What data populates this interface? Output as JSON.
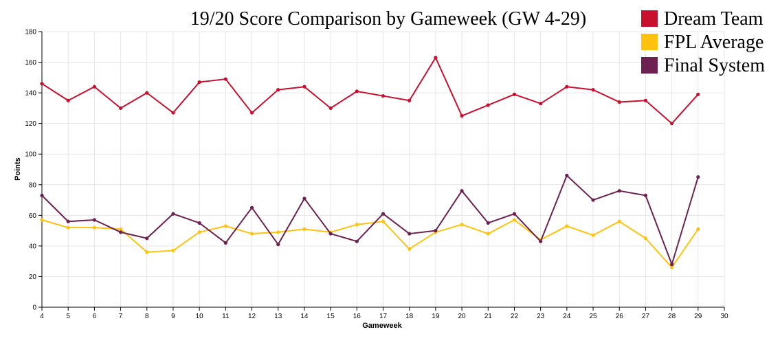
{
  "chart_data": {
    "type": "line",
    "title": "19/20 Score Comparison by Gameweek (GW 4-29)",
    "xlabel": "Gameweek",
    "ylabel": "Points",
    "xlim": [
      4,
      30
    ],
    "ylim": [
      0,
      180
    ],
    "x_ticks": [
      4,
      5,
      6,
      7,
      8,
      9,
      10,
      11,
      12,
      13,
      14,
      15,
      16,
      17,
      18,
      19,
      20,
      21,
      22,
      23,
      24,
      25,
      26,
      27,
      28,
      29,
      30
    ],
    "y_ticks": [
      0,
      20,
      40,
      60,
      80,
      100,
      120,
      140,
      160,
      180
    ],
    "grid": true,
    "legend_position": "top-right",
    "x": [
      4,
      5,
      6,
      7,
      8,
      9,
      10,
      11,
      12,
      13,
      14,
      15,
      16,
      17,
      18,
      19,
      20,
      21,
      22,
      23,
      24,
      25,
      26,
      27,
      28,
      29
    ],
    "series": [
      {
        "name": "Dream Team",
        "color": "#c8102e",
        "values": [
          146,
          135,
          144,
          130,
          140,
          127,
          147,
          149,
          127,
          142,
          144,
          130,
          141,
          138,
          135,
          163,
          125,
          132,
          139,
          133,
          144,
          142,
          134,
          135,
          120,
          139
        ]
      },
      {
        "name": "FPL Average",
        "color": "#ffc20e",
        "values": [
          57,
          52,
          52,
          51,
          36,
          37,
          49,
          53,
          48,
          49,
          51,
          49,
          54,
          56,
          38,
          49,
          54,
          48,
          57,
          44,
          53,
          47,
          56,
          45,
          26,
          51
        ]
      },
      {
        "name": "Final System",
        "color": "#6c2150",
        "values": [
          73,
          56,
          57,
          49,
          45,
          61,
          55,
          42,
          65,
          41,
          71,
          48,
          43,
          61,
          48,
          50,
          76,
          55,
          61,
          43,
          86,
          70,
          76,
          73,
          28,
          85
        ]
      }
    ]
  }
}
